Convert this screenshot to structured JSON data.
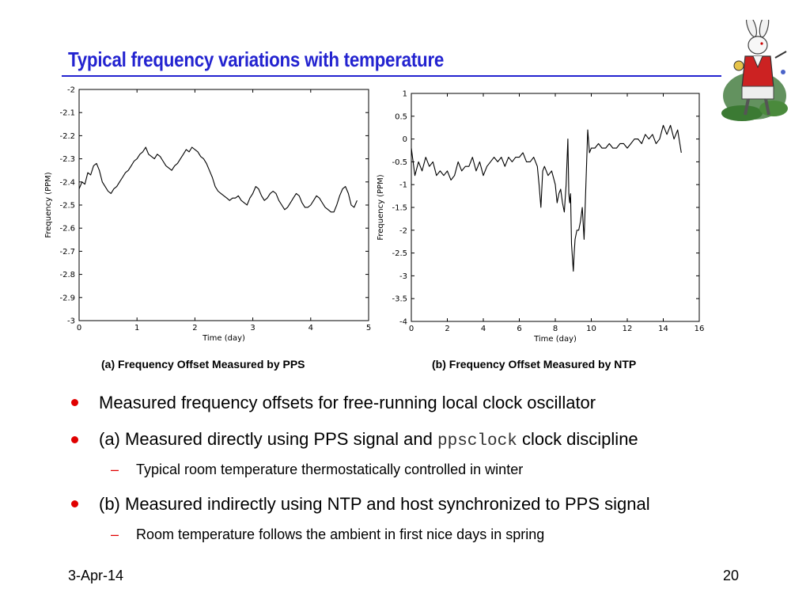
{
  "slide": {
    "title": "Typical frequency variations with temperature",
    "accent_color": "#2323d0",
    "bullet_color": "#e00000",
    "decoration_icon": "white-rabbit-illustration"
  },
  "captions": {
    "a": "(a) Frequency Offset Measured by PPS",
    "b": "(b) Frequency Offset Measured by NTP"
  },
  "bullets": [
    {
      "text": "Measured frequency offsets for free-running local clock oscillator"
    },
    {
      "text_before": "(a) Measured directly using PPS signal and ",
      "code": "ppsclock",
      "text_after": " clock discipline",
      "sub": "Typical room temperature thermostatically controlled in winter"
    },
    {
      "text": "(b) Measured indirectly using NTP and host synchronized to PPS signal",
      "sub": "Room temperature follows the ambient in first nice days in spring"
    }
  ],
  "footer": {
    "date": "3-Apr-14",
    "page": "20"
  },
  "chart_data": [
    {
      "type": "line",
      "xlabel": "Time (day)",
      "ylabel": "Frequency (PPM)",
      "xlim": [
        0,
        5
      ],
      "ylim": [
        -3,
        -2
      ],
      "xticks": [
        "0",
        "1",
        "2",
        "3",
        "4",
        "5"
      ],
      "yticks": [
        "-2",
        "-2.1",
        "-2.2",
        "-2.3",
        "-2.4",
        "-2.5",
        "-2.6",
        "-2.7",
        "-2.8",
        "-2.9",
        "-3"
      ],
      "series": [
        {
          "x": [
            0,
            0.05,
            0.1,
            0.15,
            0.2,
            0.25,
            0.3,
            0.35,
            0.4,
            0.45,
            0.5,
            0.55,
            0.6,
            0.65,
            0.7,
            0.75,
            0.8,
            0.85,
            0.9,
            0.95,
            1.0,
            1.05,
            1.1,
            1.15,
            1.2,
            1.25,
            1.3,
            1.35,
            1.4,
            1.45,
            1.5,
            1.55,
            1.6,
            1.65,
            1.7,
            1.75,
            1.8,
            1.85,
            1.9,
            1.95,
            2.0,
            2.05,
            2.1,
            2.15,
            2.2,
            2.25,
            2.3,
            2.35,
            2.4,
            2.45,
            2.5,
            2.55,
            2.6,
            2.65,
            2.7,
            2.75,
            2.8,
            2.85,
            2.9,
            2.95,
            3.0,
            3.05,
            3.1,
            3.15,
            3.2,
            3.25,
            3.3,
            3.35,
            3.4,
            3.45,
            3.5,
            3.55,
            3.6,
            3.65,
            3.7,
            3.75,
            3.8,
            3.85,
            3.9,
            3.95,
            4.0,
            4.05,
            4.1,
            4.15,
            4.2,
            4.25,
            4.3,
            4.35,
            4.4,
            4.45,
            4.5,
            4.55,
            4.6,
            4.65,
            4.7,
            4.75,
            4.8
          ],
          "y": [
            -2.43,
            -2.4,
            -2.41,
            -2.36,
            -2.37,
            -2.33,
            -2.32,
            -2.35,
            -2.4,
            -2.42,
            -2.44,
            -2.45,
            -2.43,
            -2.42,
            -2.4,
            -2.38,
            -2.36,
            -2.35,
            -2.33,
            -2.31,
            -2.3,
            -2.28,
            -2.27,
            -2.25,
            -2.28,
            -2.29,
            -2.3,
            -2.28,
            -2.29,
            -2.31,
            -2.33,
            -2.34,
            -2.35,
            -2.33,
            -2.32,
            -2.3,
            -2.28,
            -2.26,
            -2.27,
            -2.25,
            -2.26,
            -2.27,
            -2.29,
            -2.3,
            -2.32,
            -2.35,
            -2.38,
            -2.42,
            -2.44,
            -2.45,
            -2.46,
            -2.47,
            -2.48,
            -2.47,
            -2.47,
            -2.46,
            -2.48,
            -2.49,
            -2.5,
            -2.47,
            -2.45,
            -2.42,
            -2.43,
            -2.46,
            -2.48,
            -2.47,
            -2.45,
            -2.44,
            -2.45,
            -2.48,
            -2.5,
            -2.52,
            -2.51,
            -2.49,
            -2.47,
            -2.45,
            -2.46,
            -2.49,
            -2.51,
            -2.51,
            -2.5,
            -2.48,
            -2.46,
            -2.47,
            -2.49,
            -2.51,
            -2.52,
            -2.53,
            -2.53,
            -2.5,
            -2.46,
            -2.43,
            -2.42,
            -2.45,
            -2.5,
            -2.51,
            -2.48
          ]
        }
      ]
    },
    {
      "type": "line",
      "xlabel": "Time (day)",
      "ylabel": "Frequency (PPM)",
      "xlim": [
        0,
        16
      ],
      "ylim": [
        -4,
        1
      ],
      "xticks": [
        "0",
        "2",
        "4",
        "6",
        "8",
        "10",
        "12",
        "14",
        "16"
      ],
      "yticks": [
        "1",
        "0.5",
        "0",
        "-0.5",
        "-1",
        "-1.5",
        "-2",
        "-2.5",
        "-3",
        "-3.5",
        "-4"
      ],
      "series": [
        {
          "x": [
            0,
            0.2,
            0.4,
            0.6,
            0.8,
            1.0,
            1.2,
            1.4,
            1.6,
            1.8,
            2.0,
            2.2,
            2.4,
            2.6,
            2.8,
            3.0,
            3.2,
            3.4,
            3.6,
            3.8,
            4.0,
            4.2,
            4.4,
            4.6,
            4.8,
            5.0,
            5.2,
            5.4,
            5.6,
            5.8,
            6.0,
            6.2,
            6.4,
            6.6,
            6.8,
            7.0,
            7.1,
            7.2,
            7.3,
            7.4,
            7.6,
            7.8,
            8.0,
            8.1,
            8.2,
            8.3,
            8.4,
            8.5,
            8.6,
            8.7,
            8.75,
            8.8,
            8.85,
            8.9,
            9.0,
            9.05,
            9.1,
            9.2,
            9.3,
            9.4,
            9.5,
            9.6,
            9.7,
            9.8,
            9.9,
            10.0,
            10.2,
            10.4,
            10.6,
            10.8,
            11.0,
            11.2,
            11.4,
            11.6,
            11.8,
            12.0,
            12.2,
            12.4,
            12.6,
            12.8,
            13.0,
            13.2,
            13.4,
            13.6,
            13.8,
            14.0,
            14.2,
            14.4,
            14.6,
            14.8,
            15.0
          ],
          "y": [
            -0.2,
            -0.8,
            -0.5,
            -0.7,
            -0.4,
            -0.6,
            -0.5,
            -0.8,
            -0.7,
            -0.8,
            -0.7,
            -0.9,
            -0.8,
            -0.5,
            -0.7,
            -0.6,
            -0.6,
            -0.4,
            -0.7,
            -0.5,
            -0.8,
            -0.6,
            -0.5,
            -0.4,
            -0.5,
            -0.4,
            -0.6,
            -0.4,
            -0.5,
            -0.4,
            -0.4,
            -0.3,
            -0.5,
            -0.5,
            -0.4,
            -0.6,
            -1.0,
            -1.5,
            -0.7,
            -0.6,
            -0.8,
            -0.7,
            -1.0,
            -1.4,
            -1.2,
            -1.1,
            -1.4,
            -1.6,
            -1.0,
            0.0,
            -1.2,
            -1.4,
            -1.2,
            -2.3,
            -2.9,
            -2.5,
            -2.2,
            -2.0,
            -2.0,
            -1.8,
            -1.5,
            -2.2,
            -1.0,
            0.2,
            -0.3,
            -0.2,
            -0.2,
            -0.1,
            -0.2,
            -0.2,
            -0.1,
            -0.2,
            -0.2,
            -0.1,
            -0.1,
            -0.2,
            -0.1,
            0.0,
            0.0,
            -0.1,
            0.1,
            0.0,
            0.1,
            -0.1,
            0.0,
            0.3,
            0.1,
            0.3,
            0.0,
            0.2,
            -0.3
          ]
        }
      ]
    }
  ]
}
